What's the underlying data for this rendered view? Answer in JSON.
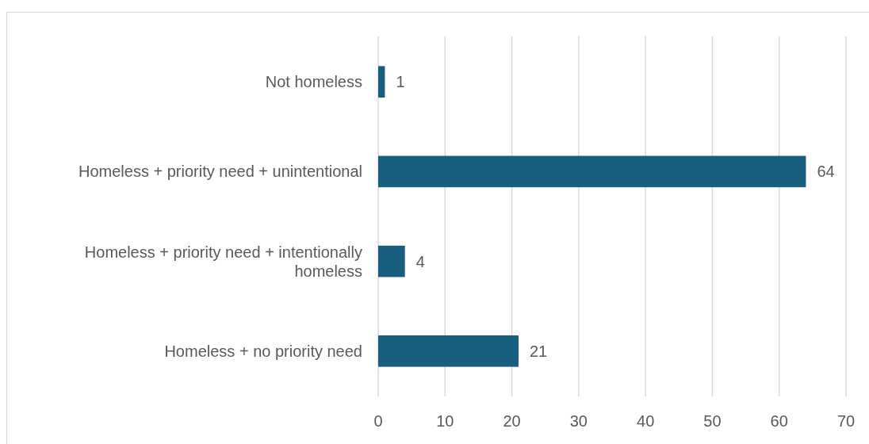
{
  "chart_data": {
    "type": "bar",
    "orientation": "horizontal",
    "categories": [
      "Not homeless",
      "Homeless + priority need + unintentional",
      "Homeless + priority need + intentionally homeless",
      "Homeless + no priority need"
    ],
    "values": [
      1,
      64,
      4,
      21
    ],
    "color": "#175e7f",
    "xlim": [
      0,
      70
    ],
    "xticks": [
      0,
      10,
      20,
      30,
      40,
      50,
      60,
      70
    ],
    "grid": "x",
    "data_labels": true
  }
}
